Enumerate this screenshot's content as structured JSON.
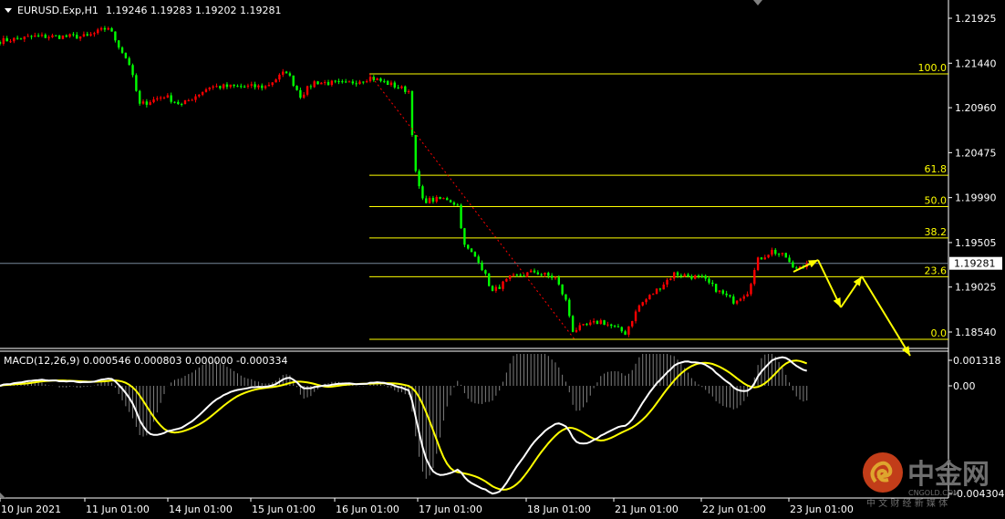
{
  "header": {
    "symbol": "EURUSD.Exp,H1",
    "ohlc": "1.19246 1.19283 1.19202 1.19281"
  },
  "macd_header": "MACD(12,26,9) 0.000546 0.000803 0.000000 -0.000334",
  "colors": {
    "background": "#000000",
    "bull_candle": "#ff0000",
    "bear_candle": "#00ff00",
    "fibo": "#ffff00",
    "macd_main": "#ffffff",
    "macd_signal": "#ffff00",
    "macd_histogram": "#808080",
    "current_price_line": "#778899",
    "projection_arrows": "#ffff00",
    "fibo_trend_line": "#ff0000"
  },
  "chart_data": [
    {
      "type": "candlestick",
      "symbol": "EURUSD.Exp",
      "timeframe": "H1",
      "current_price": "1.19281",
      "y_ticks": [
        "1.21925",
        "1.21440",
        "1.20960",
        "1.20475",
        "1.19990",
        "1.19505",
        "1.19025",
        "1.18540"
      ],
      "ylim": [
        1.1846,
        1.2205
      ],
      "x_ticks": [
        "10 Jun 2021",
        "11 Jun 01:00",
        "14 Jun 01:00",
        "15 Jun 01:00",
        "16 Jun 01:00",
        "17 Jun 01:00",
        "18 Jun 01:00",
        "21 Jun 01:00",
        "22 Jun 01:00",
        "23 Jun 01:00"
      ],
      "trading_days": [
        "2021-06-10",
        "2021-06-11",
        "2021-06-14",
        "2021-06-15",
        "2021-06-16",
        "2021-06-17",
        "2021-06-18",
        "2021-06-21",
        "2021-06-22",
        "2021-06-23"
      ],
      "close_path": [
        [
          "2021-06-10 01:00",
          1.21679
        ],
        [
          "2021-06-10 11:00",
          1.21728
        ],
        [
          "2021-06-11 02:00",
          1.21728
        ],
        [
          "2021-06-11 08:00",
          1.21827
        ],
        [
          "2021-06-11 14:00",
          1.21433
        ],
        [
          "2021-06-11 17:00",
          1.2099
        ],
        [
          "2021-06-14 00:00",
          1.21089
        ],
        [
          "2021-06-14 05:00",
          1.2099
        ],
        [
          "2021-06-14 13:00",
          1.21187
        ],
        [
          "2021-06-14 21:00",
          1.21187
        ],
        [
          "2021-06-15 05:00",
          1.21187
        ],
        [
          "2021-06-15 11:00",
          1.21354
        ],
        [
          "2021-06-15 15:00",
          1.21089
        ],
        [
          "2021-06-15 19:00",
          1.21236
        ],
        [
          "2021-06-16 04:00",
          1.21217
        ],
        [
          "2021-06-16 11:00",
          1.21285
        ],
        [
          "2021-06-16 15:00",
          1.21236
        ],
        [
          "2021-06-16 22:00",
          1.21138
        ],
        [
          "2021-06-17 00:00",
          1.20252
        ],
        [
          "2021-06-17 02:00",
          1.19957
        ],
        [
          "2021-06-17 09:00",
          1.19977
        ],
        [
          "2021-06-17 12:00",
          1.19908
        ],
        [
          "2021-06-17 14:00",
          1.19465
        ],
        [
          "2021-06-17 18:00",
          1.19317
        ],
        [
          "2021-06-17 22:00",
          1.18973
        ],
        [
          "2021-06-18 03:00",
          1.19121
        ],
        [
          "2021-06-18 10:00",
          1.1919
        ],
        [
          "2021-06-18 16:00",
          1.19121
        ],
        [
          "2021-06-18 19:00",
          1.18875
        ],
        [
          "2021-06-18 21:00",
          1.1856
        ],
        [
          "2021-06-21 05:00",
          1.18658
        ],
        [
          "2021-06-21 12:00",
          1.1853
        ],
        [
          "2021-06-21 16:00",
          1.18825
        ],
        [
          "2021-06-21 21:00",
          1.18993
        ],
        [
          "2021-06-22 02:00",
          1.1917
        ],
        [
          "2021-06-22 10:00",
          1.19121
        ],
        [
          "2021-06-22 15:00",
          1.18973
        ],
        [
          "2021-06-22 19:00",
          1.18875
        ],
        [
          "2021-06-22 23:00",
          1.18973
        ],
        [
          "2021-06-23 02:00",
          1.19317
        ],
        [
          "2021-06-23 06:00",
          1.19416
        ],
        [
          "2021-06-23 10:00",
          1.19347
        ],
        [
          "2021-06-23 12:00",
          1.19219
        ],
        [
          "2021-06-23 16:00",
          1.19281
        ]
      ],
      "fibonacci": [
        {
          "label": "100.0",
          "price": 1.21325
        },
        {
          "label": "61.8",
          "price": 1.20231
        },
        {
          "label": "50.0",
          "price": 1.19893
        },
        {
          "label": "38.2",
          "price": 1.19555
        },
        {
          "label": "23.6",
          "price": 1.19137
        },
        {
          "label": "0.0",
          "price": 1.18461
        }
      ]
    },
    {
      "type": "line",
      "indicator": "MACD(12,26,9)",
      "series": [
        "main",
        "signal",
        "histogram"
      ],
      "y_ticks": [
        "0.001318",
        "0.00",
        "-0.004304"
      ],
      "ylim": [
        -0.004304,
        0.001318
      ]
    }
  ],
  "watermark": {
    "brand": "中金网",
    "domain": "CNGOLD.COM",
    "tagline": "中 文 财 经 新 媒 体"
  }
}
